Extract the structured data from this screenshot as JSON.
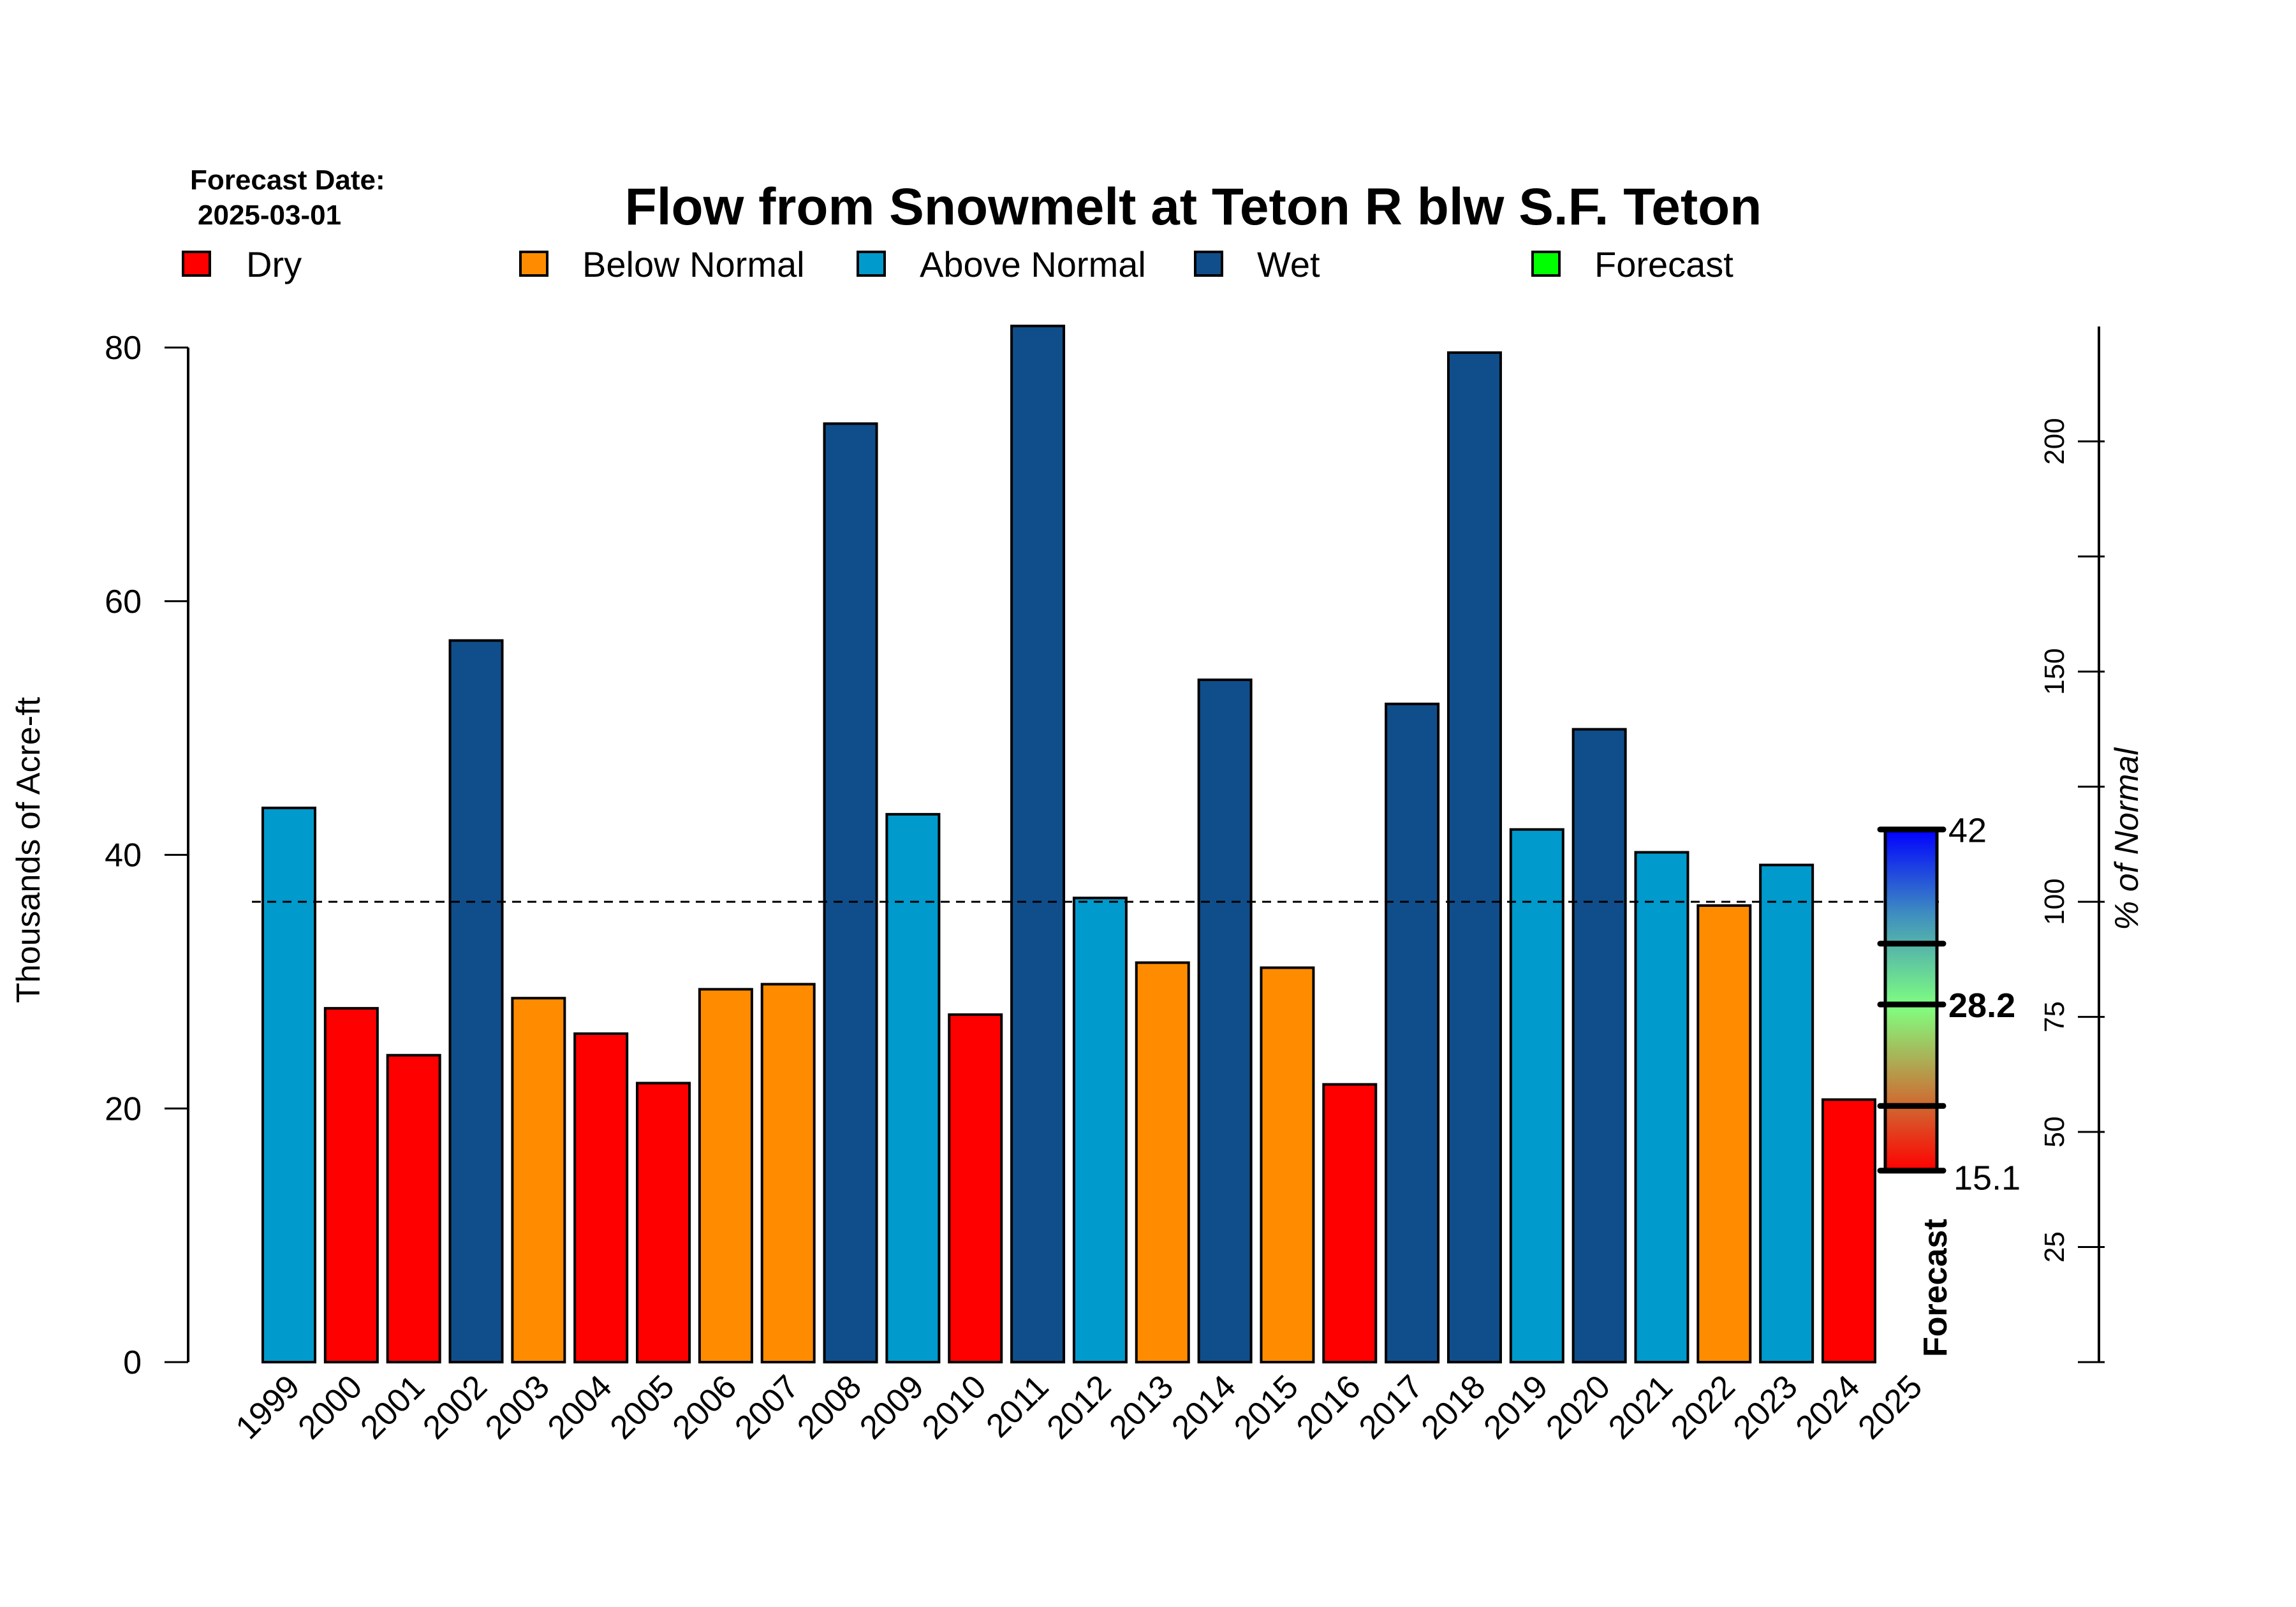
{
  "forecast_date_label": "Forecast Date:",
  "forecast_date": "2025-03-01",
  "legend": [
    {
      "label": "Dry",
      "color": "#ff0000"
    },
    {
      "label": "Below Normal",
      "color": "#ff8c00"
    },
    {
      "label": "Above Normal",
      "color": "#009acd"
    },
    {
      "label": "Wet",
      "color": "#104e8b"
    },
    {
      "label": "Forecast",
      "color": "#00ff00"
    }
  ],
  "forecast_bar": {
    "label": "Forecast",
    "max_label": "42",
    "median_label": "28.2",
    "min_label": "15.1",
    "max": 42.0,
    "upper_quartile": 33.0,
    "median": 28.2,
    "lower_quartile": 20.2,
    "min": 15.1,
    "gradient_colors": [
      "#ff0000",
      "#c87838",
      "#80ff80",
      "#3f8fbf",
      "#0000ff"
    ]
  },
  "chart_data": {
    "type": "bar",
    "title": "Flow from Snowmelt at Teton R blw S.F. Teton",
    "xlabel": "",
    "ylabel": "Thousands of Acre-ft",
    "y2label": "% of Normal",
    "ylim": [
      0,
      80
    ],
    "yticks": [
      "0",
      "20",
      "40",
      "60",
      "80"
    ],
    "y2ticks": [
      "25",
      "50",
      "75",
      "100",
      "150",
      "200"
    ],
    "y2_minor_ticks": [
      0,
      125,
      175
    ],
    "normal_value": 36.3,
    "grid": false,
    "legend_position": "top",
    "categories": [
      "1999",
      "2000",
      "2001",
      "2002",
      "2003",
      "2004",
      "2005",
      "2006",
      "2007",
      "2008",
      "2009",
      "2010",
      "2011",
      "2012",
      "2013",
      "2014",
      "2015",
      "2016",
      "2017",
      "2018",
      "2019",
      "2020",
      "2021",
      "2022",
      "2023",
      "2024",
      "2025"
    ],
    "values": [
      43.7,
      27.9,
      24.2,
      56.9,
      28.7,
      25.9,
      22.0,
      29.4,
      29.8,
      74.0,
      43.2,
      27.4,
      81.7,
      36.6,
      31.5,
      53.8,
      31.1,
      21.9,
      51.9,
      79.6,
      42.0,
      49.9,
      40.2,
      36.0,
      39.2,
      20.7,
      null
    ],
    "classes": [
      "Above Normal",
      "Dry",
      "Dry",
      "Wet",
      "Below Normal",
      "Dry",
      "Dry",
      "Below Normal",
      "Below Normal",
      "Wet",
      "Above Normal",
      "Dry",
      "Wet",
      "Above Normal",
      "Below Normal",
      "Wet",
      "Below Normal",
      "Dry",
      "Wet",
      "Wet",
      "Above Normal",
      "Wet",
      "Above Normal",
      "Below Normal",
      "Above Normal",
      "Dry",
      "Forecast"
    ]
  }
}
